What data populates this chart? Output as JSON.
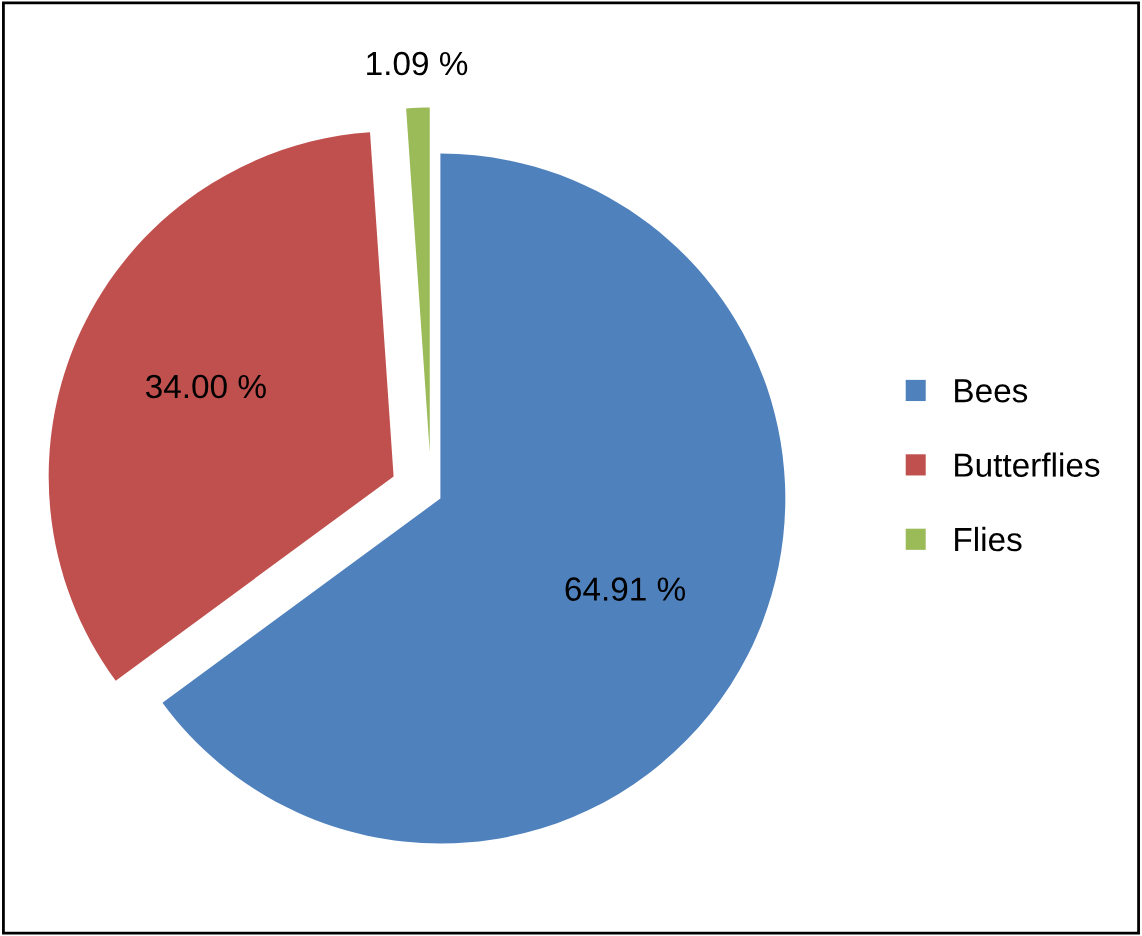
{
  "chart_data": {
    "type": "pie",
    "categories": [
      "Bees",
      "Butterflies",
      "Flies"
    ],
    "values": [
      64.91,
      34.0,
      1.09
    ],
    "value_labels": [
      "64.91 %",
      "34.00 %",
      "1.09 %"
    ],
    "colors": [
      "#4f81bd",
      "#c0504d",
      "#9bbb59"
    ],
    "legend": "right"
  }
}
